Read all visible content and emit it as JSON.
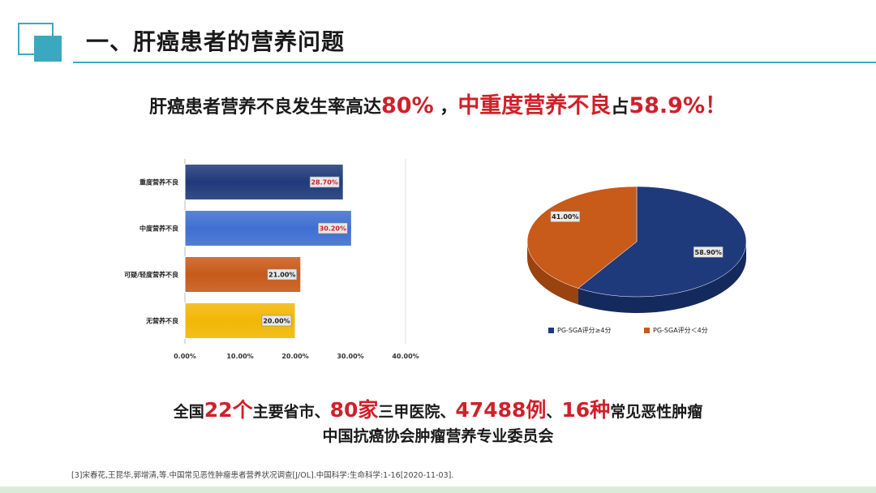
{
  "header": {
    "title": "一、肝癌患者的营养问题"
  },
  "headline": {
    "part1": "肝癌患者营养不良发生率高达",
    "rate": "80%",
    "part2": " ，",
    "severe_label": "中重度营养不良",
    "part3": "占",
    "severe_rate": "58.9%！"
  },
  "colors": {
    "accent": "#3aa9c0",
    "red": "#d0202a",
    "navy": "#1f3a7a",
    "blue": "#3f6fd1",
    "orange": "#c85a1a",
    "yellow": "#f2b705"
  },
  "chart_data": [
    {
      "type": "bar",
      "orientation": "horizontal",
      "categories": [
        "重度营养不良",
        "中度营养不良",
        "可疑/轻度营养不良",
        "无营养不良"
      ],
      "values": [
        28.7,
        30.2,
        21.0,
        20.0
      ],
      "data_labels": [
        "28.70%",
        "30.20%",
        "21.00%",
        "20.00%"
      ],
      "colors": [
        "#1f3a7a",
        "#3f6fd1",
        "#c85a1a",
        "#f2b705"
      ],
      "xlim": [
        0,
        40
      ],
      "xticks": [
        "0.00%",
        "10.00%",
        "20.00%",
        "30.00%",
        "40.00%"
      ],
      "grid": false
    },
    {
      "type": "pie",
      "style": "3d",
      "series": [
        {
          "name": "PG-SGA评分≥4分",
          "value": 58.9,
          "label": "58.90%",
          "color": "#1f3a7a"
        },
        {
          "name": "PG-SGA评分＜4分",
          "value": 41.0,
          "label": "41.00%",
          "color": "#c85a1a"
        }
      ],
      "legend_position": "bottom"
    }
  ],
  "bottom": {
    "pre": "全国",
    "n1": "22个",
    "t1": "主要省市、",
    "n2": "80家",
    "t2": "三甲医院、",
    "n3": "47488例",
    "t3": "、",
    "n4": "16种",
    "t4": "常见恶性肿瘤",
    "org": "中国抗癌协会肿瘤营养专业委员会"
  },
  "footnote": "[3]宋春花,王昆华,郭增清,等.中国常见恶性肿瘤患者营养状况调查[J/OL].中国科学:生命科学:1-16[2020-11-03]."
}
